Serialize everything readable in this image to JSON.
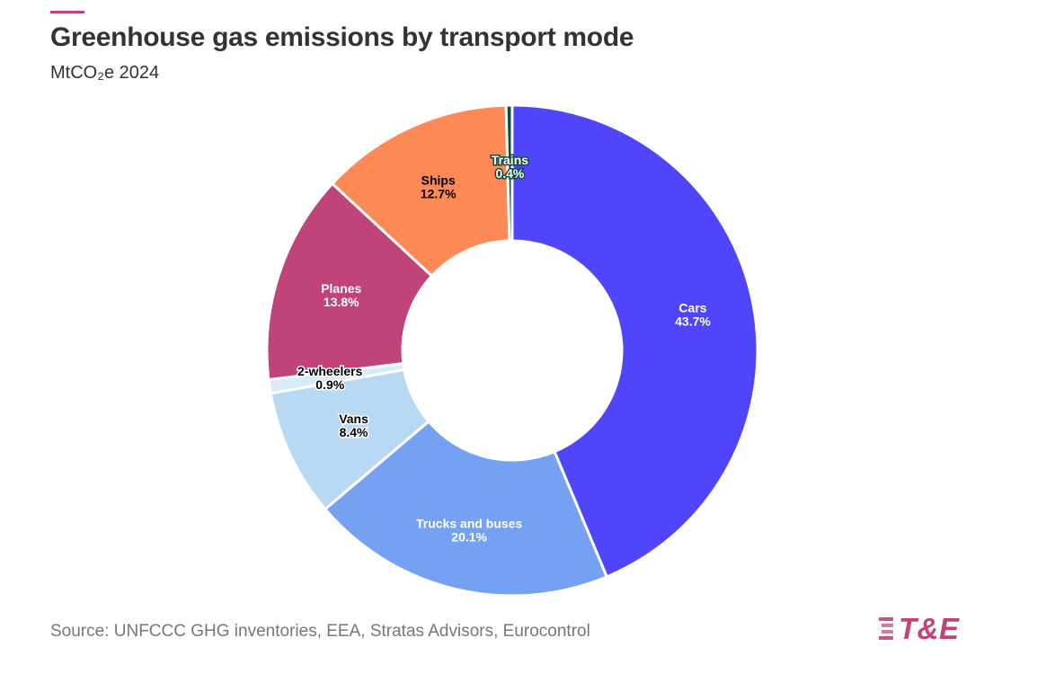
{
  "header": {
    "title": "Greenhouse gas emissions by transport mode",
    "subtitle": "MtCO₂e 2024"
  },
  "footer": {
    "source": "Source: UNFCCC GHG inventories, EEA, Stratas Advisors, Eurocontrol",
    "logo_text": "T&E"
  },
  "colors": {
    "accent": "#c0437a",
    "cars": "#4f46fb",
    "trucks_and_buses": "#75a1f3",
    "vans": "#b8d9f4",
    "two_wheelers": "#d8ebfa",
    "planes": "#c0437a",
    "ships": "#fd8957",
    "trains": "#0f4d3e"
  },
  "chart_data": {
    "type": "pie",
    "donut": true,
    "title": "Greenhouse gas emissions by transport mode",
    "subtitle": "MtCO₂e 2024",
    "unit": "%",
    "slices": [
      {
        "label": "Cars",
        "value": 43.7,
        "display": "43.7%",
        "color": "#4f46fb",
        "text_color": "#ffffff",
        "outline": "#4f46fb"
      },
      {
        "label": "Trucks and buses",
        "value": 20.1,
        "display": "20.1%",
        "color": "#75a1f3",
        "text_color": "#ffffff",
        "outline": "#75a1f3"
      },
      {
        "label": "Vans",
        "value": 8.4,
        "display": "8.4%",
        "color": "#b8d9f4",
        "text_color": "#000000",
        "outline": "#ffffff"
      },
      {
        "label": "2-wheelers",
        "value": 0.9,
        "display": "0.9%",
        "color": "#d8ebfa",
        "text_color": "#000000",
        "outline": "#ffffff"
      },
      {
        "label": "Planes",
        "value": 13.8,
        "display": "13.8%",
        "color": "#c0437a",
        "text_color": "#ffffff",
        "outline": "#c0437a"
      },
      {
        "label": "Ships",
        "value": 12.7,
        "display": "12.7%",
        "color": "#fd8957",
        "text_color": "#000000",
        "outline": "#fd8957"
      },
      {
        "label": "Trains",
        "value": 0.4,
        "display": "0.4%",
        "color": "#0f4d3e",
        "text_color": "#ffffff",
        "outline": "#0f4d3e"
      }
    ]
  }
}
